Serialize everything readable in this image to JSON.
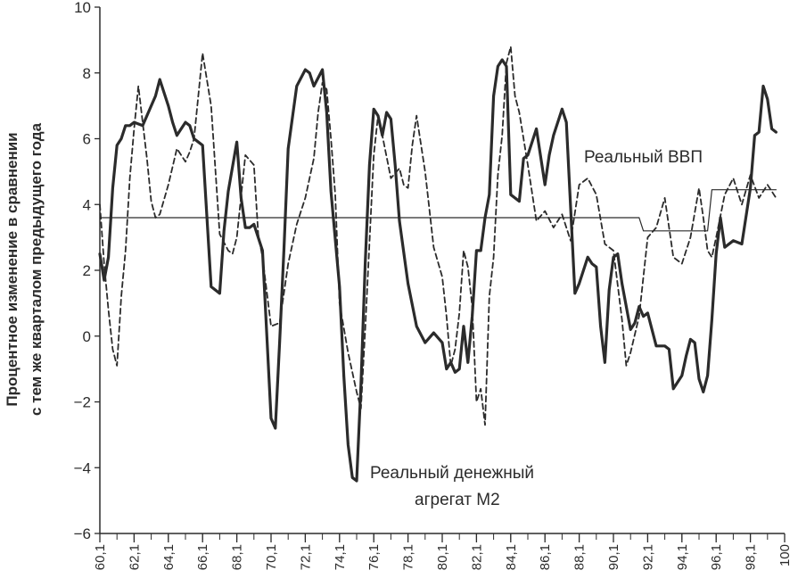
{
  "chart_data": {
    "type": "line",
    "title": "",
    "xlabel": "",
    "ylabel_lines": [
      "Процентное изменение в сравнении",
      "с тем же кварталом предыдущего года"
    ],
    "ylim": [
      -6,
      10
    ],
    "yticks": [
      10,
      8,
      6,
      4,
      2,
      0,
      -2,
      -4,
      -6
    ],
    "xlim": [
      1960.0,
      2000.0
    ],
    "xtick_labels": [
      "60,1",
      "62,1",
      "64,1",
      "66,1",
      "68,1",
      "70,1",
      "72,1",
      "74,1",
      "76,1",
      "78,1",
      "80,1",
      "82,1",
      "84,1",
      "86,1",
      "88,1",
      "90,1",
      "92,1",
      "94,1",
      "96,1",
      "98,1",
      "100"
    ],
    "xtick_positions": [
      1960,
      1962,
      1964,
      1966,
      1968,
      1970,
      1972,
      1974,
      1976,
      1978,
      1980,
      1982,
      1984,
      1986,
      1988,
      1990,
      1992,
      1994,
      1996,
      1998,
      2000
    ],
    "grid": false,
    "legend": "none",
    "annotations": [
      {
        "text": "Реальный ВВП"
      },
      {
        "text": "Реальный денежный"
      },
      {
        "text": "агрегат М2"
      }
    ],
    "series": [
      {
        "name": "Реальный денежный агрегат М2",
        "style": "solid-thick",
        "color": "#2b2b2b",
        "x": [
          1960.0,
          1960.25,
          1960.5,
          1960.75,
          1961.0,
          1961.25,
          1961.5,
          1961.75,
          1962.0,
          1962.5,
          1963.0,
          1963.25,
          1963.5,
          1964.0,
          1964.25,
          1964.5,
          1964.75,
          1965.0,
          1965.25,
          1965.5,
          1965.75,
          1966.0,
          1966.5,
          1967.0,
          1967.25,
          1967.5,
          1968.0,
          1968.25,
          1968.5,
          1968.75,
          1969.0,
          1969.5,
          1970.0,
          1970.25,
          1970.5,
          1970.75,
          1971.0,
          1971.5,
          1972.0,
          1972.25,
          1972.5,
          1973.0,
          1973.25,
          1973.5,
          1974.0,
          1974.25,
          1974.5,
          1974.75,
          1975.0,
          1975.25,
          1975.5,
          1975.75,
          1976.0,
          1976.25,
          1976.5,
          1976.75,
          1977.0,
          1977.25,
          1977.5,
          1978.0,
          1978.5,
          1979.0,
          1979.5,
          1980.0,
          1980.25,
          1980.5,
          1980.75,
          1981.0,
          1981.25,
          1981.5,
          1981.75,
          1982.0,
          1982.25,
          1982.5,
          1982.75,
          1983.0,
          1983.25,
          1983.5,
          1983.75,
          1984.0,
          1984.5,
          1984.75,
          1985.0,
          1985.5,
          1986.0,
          1986.25,
          1986.5,
          1987.0,
          1987.25,
          1987.5,
          1987.75,
          1988.0,
          1988.5,
          1988.75,
          1989.0,
          1989.25,
          1989.5,
          1989.75,
          1990.0,
          1990.25,
          1990.5,
          1991.0,
          1991.25,
          1991.5,
          1991.75,
          1992.0,
          1992.5,
          1993.0,
          1993.25,
          1993.5,
          1993.75,
          1994.0,
          1994.25,
          1994.5,
          1994.75,
          1995.0,
          1995.25,
          1995.5,
          1995.75,
          1996.0,
          1996.25,
          1996.5,
          1997.0,
          1997.5,
          1998.0,
          1998.25,
          1998.5,
          1998.75,
          1999.0,
          1999.25,
          1999.5
        ],
        "values": [
          2.5,
          1.7,
          2.4,
          4.5,
          5.8,
          6.0,
          6.4,
          6.4,
          6.5,
          6.4,
          7.0,
          7.3,
          7.8,
          7.0,
          6.5,
          6.1,
          6.3,
          6.5,
          6.4,
          6.0,
          5.9,
          5.8,
          1.5,
          1.3,
          3.2,
          4.4,
          5.9,
          4.2,
          3.3,
          3.3,
          3.4,
          2.6,
          -2.5,
          -2.8,
          -0.2,
          2.6,
          5.7,
          7.6,
          8.1,
          8.0,
          7.6,
          8.1,
          6.8,
          4.4,
          1.5,
          -1.2,
          -3.3,
          -4.3,
          -4.4,
          -1.5,
          2.2,
          5.2,
          6.9,
          6.7,
          6.1,
          6.8,
          6.6,
          5.2,
          3.5,
          1.6,
          0.3,
          -0.2,
          0.1,
          -0.2,
          -1.0,
          -0.8,
          -1.1,
          -1.0,
          0.3,
          -0.8,
          0.6,
          2.6,
          2.6,
          3.6,
          4.3,
          7.3,
          8.2,
          8.4,
          8.2,
          4.3,
          4.1,
          5.4,
          5.5,
          6.3,
          4.6,
          5.5,
          6.1,
          6.9,
          6.5,
          3.9,
          1.3,
          1.6,
          2.4,
          2.2,
          2.1,
          0.3,
          -0.8,
          1.4,
          2.4,
          2.5,
          1.6,
          0.2,
          0.4,
          0.9,
          0.6,
          0.7,
          -0.3,
          -0.3,
          -0.4,
          -1.6,
          -1.4,
          -1.2,
          -0.6,
          -0.1,
          -0.2,
          -1.3,
          -1.7,
          -1.2,
          0.5,
          2.5,
          3.6,
          2.7,
          2.9,
          2.8,
          4.5,
          6.1,
          6.2,
          7.6,
          7.2,
          6.3,
          6.2
        ]
      },
      {
        "name": "Реальный ВВП",
        "style": "dashed",
        "color": "#2b2b2b",
        "x": [
          1960.0,
          1960.25,
          1960.5,
          1960.75,
          1961.0,
          1961.25,
          1961.5,
          1961.75,
          1962.0,
          1962.25,
          1962.5,
          1962.75,
          1963.0,
          1963.25,
          1963.5,
          1964.0,
          1964.5,
          1965.0,
          1965.25,
          1965.5,
          1966.0,
          1966.5,
          1967.0,
          1967.5,
          1967.75,
          1968.0,
          1968.5,
          1969.0,
          1969.25,
          1969.5,
          1970.0,
          1970.5,
          1971.0,
          1971.5,
          1972.0,
          1972.5,
          1972.75,
          1973.0,
          1973.25,
          1973.5,
          1973.75,
          1974.0,
          1974.5,
          1975.0,
          1975.25,
          1975.5,
          1976.0,
          1976.25,
          1976.5,
          1977.0,
          1977.5,
          1977.75,
          1978.0,
          1978.25,
          1978.5,
          1979.0,
          1979.5,
          1980.0,
          1980.25,
          1980.5,
          1980.75,
          1981.0,
          1981.25,
          1981.5,
          1981.75,
          1982.0,
          1982.25,
          1982.5,
          1982.75,
          1983.0,
          1983.25,
          1983.5,
          1983.75,
          1984.0,
          1984.25,
          1984.5,
          1985.0,
          1985.5,
          1986.0,
          1986.5,
          1987.0,
          1987.5,
          1988.0,
          1988.5,
          1989.0,
          1989.5,
          1990.0,
          1990.5,
          1990.75,
          1991.0,
          1991.5,
          1992.0,
          1992.5,
          1993.0,
          1993.5,
          1994.0,
          1994.5,
          1995.0,
          1995.25,
          1995.5,
          1995.75,
          1996.0,
          1996.5,
          1997.0,
          1997.5,
          1998.0,
          1998.5,
          1999.0,
          1999.5
        ],
        "values": [
          4.0,
          2.2,
          0.8,
          -0.4,
          -0.9,
          1.2,
          2.6,
          4.8,
          6.3,
          7.6,
          6.5,
          5.4,
          4.1,
          3.6,
          3.7,
          4.6,
          5.7,
          5.3,
          5.6,
          6.0,
          8.6,
          7.0,
          3.1,
          2.6,
          2.5,
          3.0,
          5.5,
          5.2,
          3.1,
          2.4,
          0.3,
          0.4,
          2.2,
          3.4,
          4.2,
          5.4,
          6.8,
          7.7,
          7.5,
          6.0,
          4.3,
          1.0,
          -0.5,
          -1.7,
          -2.2,
          0.2,
          5.5,
          6.7,
          6.1,
          4.8,
          5.1,
          4.6,
          4.5,
          5.8,
          6.7,
          5.0,
          2.7,
          1.8,
          0.6,
          -0.9,
          -0.4,
          0.7,
          2.6,
          2.1,
          0.9,
          -2.0,
          -1.6,
          -2.7,
          1.2,
          2.4,
          4.9,
          6.1,
          8.3,
          8.8,
          7.3,
          6.8,
          5.2,
          3.5,
          3.8,
          3.3,
          3.7,
          2.9,
          4.6,
          4.8,
          4.3,
          2.8,
          2.6,
          0.5,
          -0.9,
          -0.5,
          0.6,
          3.0,
          3.3,
          4.2,
          2.4,
          2.2,
          3.0,
          4.5,
          3.6,
          2.6,
          2.4,
          3.0,
          4.3,
          4.8,
          4.0,
          4.9,
          4.2,
          4.6,
          4.2
        ]
      },
      {
        "name": "",
        "style": "solid-thin",
        "color": "#2b2b2b",
        "x": [
          1960.0,
          1991.5,
          1991.75,
          1995.5,
          1995.75,
          1999.5
        ],
        "values": [
          3.6,
          3.6,
          3.2,
          3.2,
          4.45,
          4.45
        ]
      }
    ]
  }
}
